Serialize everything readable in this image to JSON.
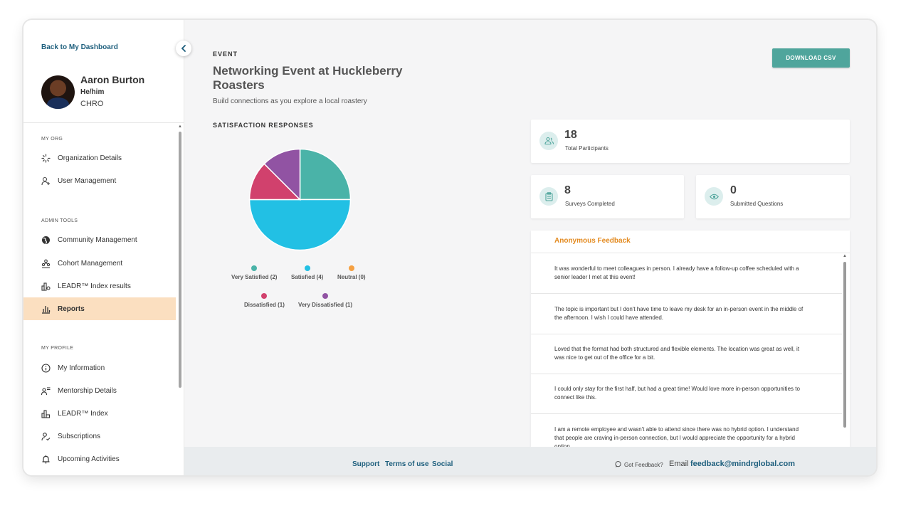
{
  "sidebar": {
    "back_link": "Back to My Dashboard",
    "user": {
      "name": "Aaron Burton",
      "pronouns": "He/him",
      "role": "CHRO"
    },
    "sections": [
      {
        "title": "MY ORG",
        "items": [
          {
            "label": "Organization Details",
            "icon": "org-icon"
          },
          {
            "label": "User Management",
            "icon": "user-add-icon"
          }
        ]
      },
      {
        "title": "ADMIN TOOLS",
        "items": [
          {
            "label": "Community Management",
            "icon": "globe-icon"
          },
          {
            "label": "Cohort Management",
            "icon": "group-icon"
          },
          {
            "label": "LEADR™ Index results",
            "icon": "index-icon"
          },
          {
            "label": "Reports",
            "icon": "bar-chart-icon",
            "active": true
          }
        ]
      },
      {
        "title": "MY PROFILE",
        "items": [
          {
            "label": "My Information",
            "icon": "info-icon"
          },
          {
            "label": "Mentorship Details",
            "icon": "mentor-icon"
          },
          {
            "label": "LEADR™ Index",
            "icon": "index-icon"
          },
          {
            "label": "Subscriptions",
            "icon": "user-check-icon"
          },
          {
            "label": "Upcoming Activities",
            "icon": "bell-icon"
          }
        ]
      }
    ]
  },
  "event": {
    "label": "EVENT",
    "title": "Networking Event at Huckleberry Roasters",
    "description": "Build connections as you explore a local roastery",
    "download_label": "DOWNLOAD CSV"
  },
  "satisfaction": {
    "title": "SATISFACTION RESPONSES",
    "legend": [
      {
        "label": "Very Satisfied (2)",
        "color": "#4ab3a8"
      },
      {
        "label": "Satisfied (4)",
        "color": "#22c0e4"
      },
      {
        "label": "Neutral (0)",
        "color": "#f5a042"
      },
      {
        "label": "Dissatisfied (1)",
        "color": "#d1416d"
      },
      {
        "label": "Very Dissatisfied (1)",
        "color": "#9153a3"
      }
    ]
  },
  "chart_data": {
    "type": "pie",
    "categories": [
      "Very Satisfied",
      "Satisfied",
      "Neutral",
      "Dissatisfied",
      "Very Dissatisfied"
    ],
    "values": [
      2,
      4,
      0,
      1,
      1
    ],
    "colors": [
      "#4ab3a8",
      "#22c0e4",
      "#f5a042",
      "#d1416d",
      "#9153a3"
    ],
    "title": "SATISFACTION RESPONSES"
  },
  "stats": {
    "participants": {
      "value": "18",
      "label": "Total Participants",
      "icon": "users-icon"
    },
    "surveys": {
      "value": "8",
      "label": "Surveys Completed",
      "icon": "clipboard-icon"
    },
    "questions": {
      "value": "0",
      "label": "Submitted Questions",
      "icon": "eye-icon"
    }
  },
  "feedback": {
    "title": "Anonymous Feedback",
    "items": [
      "It was wonderful to meet colleagues in person. I already have a follow-up coffee scheduled with a senior leader I met at this event!",
      "The topic is important but I don't have time to leave my desk for an in-person event in the middle of the afternoon. I wish I could have attended.",
      "Loved that the format had both structured and flexible elements. The location was great as well, it was nice to get out of the office for a bit.",
      "I could only stay for the first half, but had a great time! Would love more in-person opportunities to connect like this.",
      "I am a remote employee and wasn't able to attend since there was no hybrid option. I understand that people are craving in-person connection, but I would appreciate the opportunity for a hybrid option."
    ]
  },
  "footer": {
    "support": "Support",
    "terms": "Terms of use",
    "social": "Social",
    "got_feedback": "Got Feedback?",
    "email_label": "Email",
    "email": "feedback@mindrglobal.com"
  }
}
